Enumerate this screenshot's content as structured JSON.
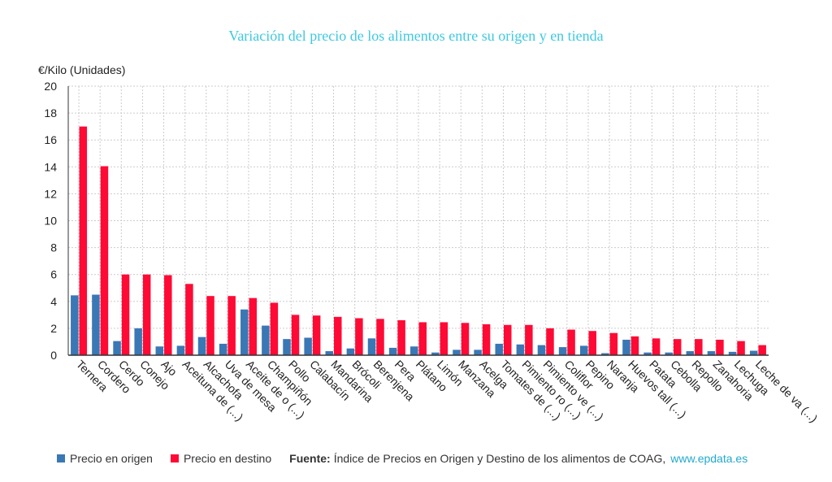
{
  "colors": {
    "origen": "#3a77b5",
    "destino": "#ff0a35",
    "title": "#3ec9e0",
    "link": "#22aacc",
    "grid": "#cccccc",
    "axis": "#333333"
  },
  "chart_data": {
    "type": "bar",
    "title": "Variación del precio de los alimentos entre su origen y en tienda",
    "ylabel": "€/Kilo (Unidades)",
    "xlabel": "",
    "ylim": [
      0,
      20
    ],
    "yticks": [
      0,
      2,
      4,
      6,
      8,
      10,
      12,
      14,
      16,
      18,
      20
    ],
    "grid": true,
    "legend_position": "bottom",
    "categories": [
      "Ternera",
      "Cordero",
      "Cerdo",
      "Conejo",
      "Ajo",
      "Aceituna de (...)",
      "Alcachofa",
      "Uva de mesa",
      "Aceite de o (...)",
      "Champiñón",
      "Pollo",
      "Calabacín",
      "Mandarina",
      "Brócoli",
      "Berenjena",
      "Pera",
      "Plátano",
      "Limón",
      "Manzana",
      "Acelga",
      "Tomates de (...)",
      "Pimiento ro (...)",
      "Pimiento ve (...)",
      "Coliflor",
      "Pepino",
      "Naranja",
      "Huevos tall (...)",
      "Patata",
      "Cebolla",
      "Repollo",
      "Zanahoria",
      "Lechuga",
      "Leche de va (...)"
    ],
    "series": [
      {
        "name": "Precio en origen",
        "values": [
          4.45,
          4.5,
          1.05,
          2.0,
          0.65,
          0.7,
          1.35,
          0.85,
          3.4,
          2.2,
          1.2,
          1.3,
          0.3,
          0.5,
          1.25,
          0.55,
          0.65,
          0.2,
          0.4,
          0.4,
          0.85,
          0.8,
          0.75,
          0.6,
          0.7,
          0.15,
          1.15,
          0.2,
          0.2,
          0.3,
          0.3,
          0.25,
          0.33
        ]
      },
      {
        "name": "Precio en destino",
        "values": [
          17.0,
          14.05,
          6.0,
          6.0,
          5.95,
          5.3,
          4.4,
          4.4,
          4.25,
          3.9,
          3.0,
          2.95,
          2.85,
          2.75,
          2.7,
          2.6,
          2.45,
          2.45,
          2.4,
          2.3,
          2.25,
          2.25,
          2.0,
          1.9,
          1.8,
          1.65,
          1.4,
          1.25,
          1.2,
          1.2,
          1.15,
          1.05,
          0.75
        ]
      }
    ]
  },
  "footer": {
    "source_label": "Fuente:",
    "source_text": "Índice de Precios en Origen y Destino de los alimentos de COAG,",
    "source_link": "www.epdata.es"
  }
}
